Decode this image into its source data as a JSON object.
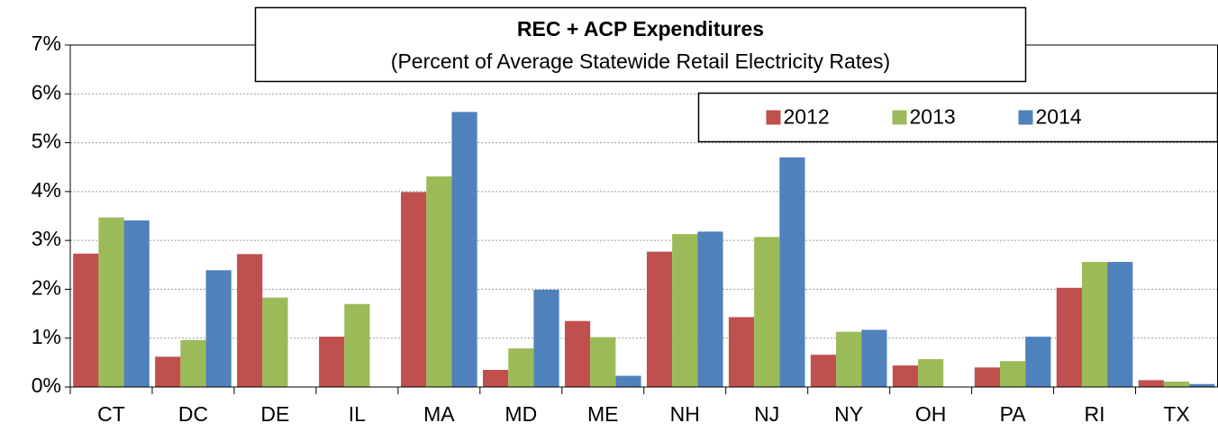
{
  "chart_data": {
    "type": "bar",
    "title": "REC + ACP Expenditures",
    "subtitle": "(Percent of Average Statewide Retail Electricity Rates)",
    "categories": [
      "CT",
      "DC",
      "DE",
      "IL",
      "MA",
      "MD",
      "ME",
      "NH",
      "NJ",
      "NY",
      "OH",
      "PA",
      "RI",
      "TX"
    ],
    "series": [
      {
        "name": "2012",
        "color": "#c0504d",
        "values": [
          2.73,
          0.62,
          2.72,
          1.03,
          3.99,
          0.35,
          1.35,
          2.77,
          1.43,
          0.66,
          0.44,
          0.4,
          2.03,
          0.14
        ]
      },
      {
        "name": "2013",
        "color": "#9bbb59",
        "values": [
          3.47,
          0.96,
          1.83,
          1.7,
          4.31,
          0.79,
          1.02,
          3.13,
          3.07,
          1.13,
          0.57,
          0.53,
          2.56,
          0.11
        ]
      },
      {
        "name": "2014",
        "color": "#4f81bd",
        "values": [
          3.41,
          2.39,
          null,
          null,
          5.63,
          1.99,
          0.23,
          3.18,
          4.7,
          1.17,
          null,
          1.03,
          2.56,
          0.06
        ]
      }
    ],
    "ylim": [
      0,
      7
    ],
    "yticks": [
      {
        "value": 0,
        "label": "0%"
      },
      {
        "value": 1,
        "label": "1%"
      },
      {
        "value": 2,
        "label": "2%"
      },
      {
        "value": 3,
        "label": "3%"
      },
      {
        "value": 4,
        "label": "4%"
      },
      {
        "value": 5,
        "label": "5%"
      },
      {
        "value": 6,
        "label": "6%"
      },
      {
        "value": 7,
        "label": "7%"
      }
    ],
    "grid": true,
    "legend_position": "upper right"
  }
}
